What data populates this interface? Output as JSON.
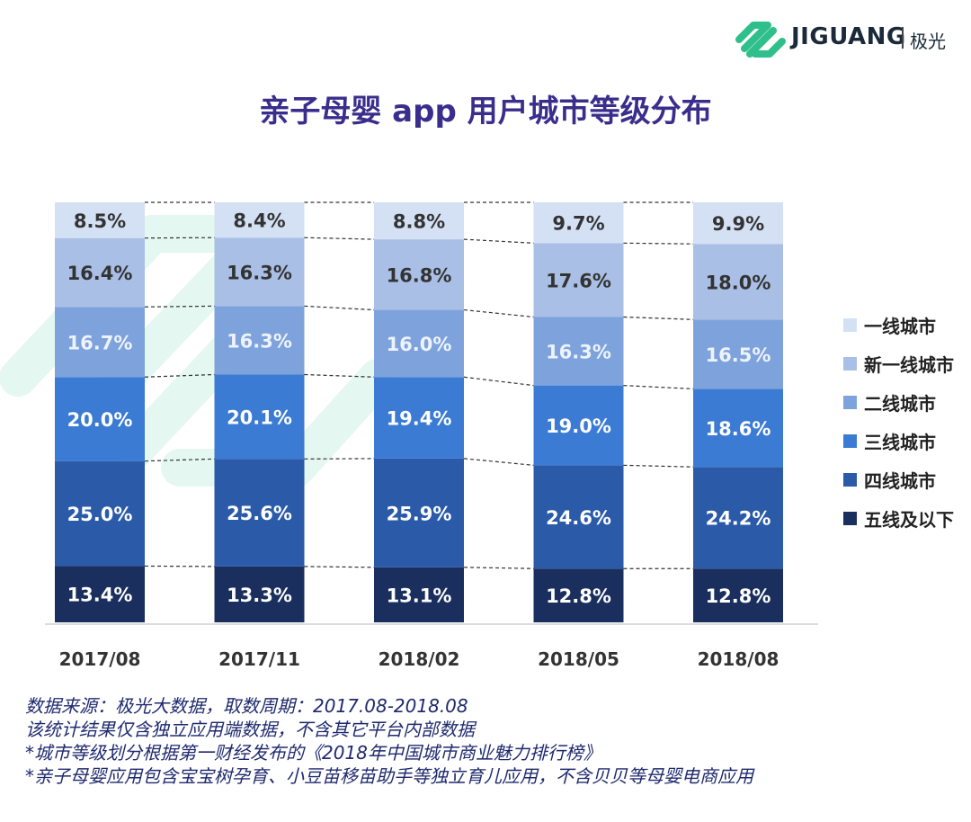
{
  "header": {
    "logo_text": "JIGUANG",
    "logo_cn": "极光"
  },
  "title": "亲子母婴 app 用户城市等级分布",
  "chart_data": {
    "type": "bar",
    "stacked": true,
    "percent": true,
    "categories": [
      "2017/08",
      "2017/11",
      "2018/02",
      "2018/05",
      "2018/08"
    ],
    "series": [
      {
        "name": "五线及以下",
        "color": "#1b2f5e",
        "values": [
          13.4,
          13.3,
          13.1,
          12.8,
          12.8
        ]
      },
      {
        "name": "四线城市",
        "color": "#2a5aa8",
        "values": [
          25.0,
          25.6,
          25.9,
          24.6,
          24.2
        ]
      },
      {
        "name": "三线城市",
        "color": "#3b7bd3",
        "values": [
          20.0,
          20.1,
          19.4,
          19.0,
          18.6
        ]
      },
      {
        "name": "二线城市",
        "color": "#7ea3dc",
        "values": [
          16.7,
          16.3,
          16.0,
          16.3,
          16.5
        ]
      },
      {
        "name": "新一线城市",
        "color": "#a9bfe5",
        "values": [
          16.4,
          16.3,
          16.8,
          17.6,
          18.0
        ]
      },
      {
        "name": "一线城市",
        "color": "#d4e0f4",
        "values": [
          8.5,
          8.4,
          8.8,
          9.7,
          9.9
        ]
      }
    ],
    "legend_order": [
      "一线城市",
      "新一线城市",
      "二线城市",
      "三线城市",
      "四线城市",
      "五线及以下"
    ],
    "legend_position": "right",
    "ylim": [
      0,
      100
    ]
  },
  "notes": [
    "数据来源：极光大数据，取数周期：2017.08-2018.08",
    "该统计结果仅含独立应用端数据，不含其它平台内部数据",
    " *城市等级划分根据第一财经发布的《2018年中国城市商业魅力排行榜》",
    " *亲子母婴应用包含宝宝树孕育、小豆苗移苗助手等独立育儿应用，不含贝贝等母婴电商应用"
  ],
  "colors": {
    "title": "#3a2d8c",
    "notes": "#1f2a6e",
    "brand_green": "#2fbf8c"
  }
}
